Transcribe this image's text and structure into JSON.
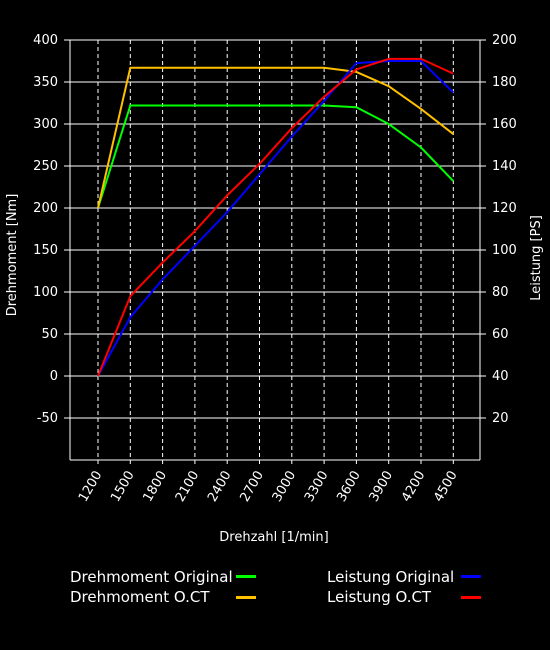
{
  "chart_data": {
    "type": "line",
    "xlabel": "Drehzahl [1/min]",
    "ylabel_left": "Drehmoment [Nm]",
    "ylabel_right": "Leistung [PS]",
    "x": [
      1200,
      1500,
      1800,
      2100,
      2400,
      2700,
      3000,
      3300,
      3600,
      3900,
      4200,
      4500
    ],
    "x_ticks": [
      "1200",
      "1500",
      "1800",
      "2100",
      "2400",
      "2700",
      "3000",
      "3300",
      "3600",
      "3900",
      "4200",
      "4500"
    ],
    "ylim_left": [
      -100,
      400
    ],
    "ylim_right": [
      0,
      200
    ],
    "y_ticks_left": [
      "400",
      "350",
      "300",
      "250",
      "200",
      "150",
      "100",
      "50",
      "0",
      "-50"
    ],
    "y_ticks_right": [
      "200",
      "180",
      "160",
      "140",
      "120",
      "100",
      "80",
      "60",
      "40",
      "20"
    ],
    "grid": true,
    "legend_position": "bottom",
    "series": [
      {
        "name": "Drehmoment Original",
        "axis": "left",
        "color": "#00ff00",
        "values": [
          200,
          322,
          322,
          322,
          322,
          322,
          322,
          322,
          320,
          300,
          272,
          232
        ]
      },
      {
        "name": "Drehmoment O.CT",
        "axis": "left",
        "color": "#ffc000",
        "values": [
          200,
          367,
          367,
          367,
          367,
          367,
          367,
          367,
          362,
          345,
          318,
          288
        ]
      },
      {
        "name": "Leistung Original",
        "axis": "right",
        "color": "#0000ff",
        "values": [
          40,
          68,
          86,
          102,
          118,
          136,
          154,
          171,
          189,
          190,
          190,
          175
        ]
      },
      {
        "name": "Leistung O.CT",
        "axis": "right",
        "color": "#ff0000",
        "values": [
          40,
          78,
          94,
          109,
          126,
          141,
          158,
          173,
          186,
          191,
          191,
          184
        ]
      }
    ]
  }
}
